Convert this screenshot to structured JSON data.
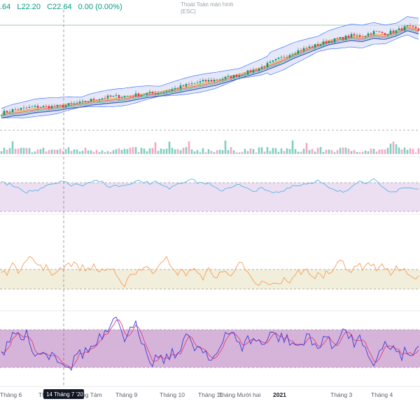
{
  "header": {
    "open": ".64",
    "low": "L22.20",
    "close": "C22.64",
    "change": "0.00 (0.00%)"
  },
  "fullscreen_tip": {
    "line1": "Thoát Toàn màn hình",
    "line2": "(ESC)"
  },
  "crosshair_label": "14 Tháng 7 '20",
  "colors": {
    "up": "#089981",
    "down": "#f23645",
    "bb_fill": "#cfd6f2",
    "bb_line": "#2962ff",
    "ma_orange": "#f7a21b",
    "ma_red": "#e0544c",
    "ma_green": "#56b38a",
    "rsi_line": "#5ab4e5",
    "rsi_band": "#ecdff2",
    "mfi_line": "#f5a05a",
    "mfi_band": "#f1eedc",
    "stoch_k": "#3d3bd9",
    "stoch_d": "#e23f76",
    "stoch_band": "#d6b3d9"
  },
  "chart_data": {
    "type": "line",
    "xlabel": "",
    "ylabel": "",
    "x_tick_labels": [
      "Tháng 6",
      "Th",
      "ng Tám",
      "Tháng 9",
      "Tháng 10",
      "Tháng 11",
      "Tháng Mười hai",
      "2021",
      "Tháng 3",
      "Tháng 4"
    ],
    "grid": false,
    "legend": "none",
    "series": [
      {
        "values": [
          20.3,
          20.5,
          20.6,
          20.8,
          20.9,
          21.0,
          21.2,
          21.3,
          21.5,
          21.6,
          21.7,
          21.8,
          22.0,
          22.2,
          22.3,
          22.5,
          22.7,
          22.9,
          23.1,
          23.3,
          23.6,
          23.9,
          24.2,
          24.5,
          24.9,
          25.3,
          25.8,
          26.2,
          26.6,
          27.0,
          27.2,
          27.4,
          27.3,
          27.6,
          27.5,
          27.8,
          28.3,
          28.0
        ]
      }
    ],
    "panels": [
      {
        "name": "price_bollinger"
      },
      {
        "name": "volume"
      },
      {
        "name": "rsi"
      },
      {
        "name": "mfi"
      },
      {
        "name": "stochastic"
      }
    ]
  }
}
